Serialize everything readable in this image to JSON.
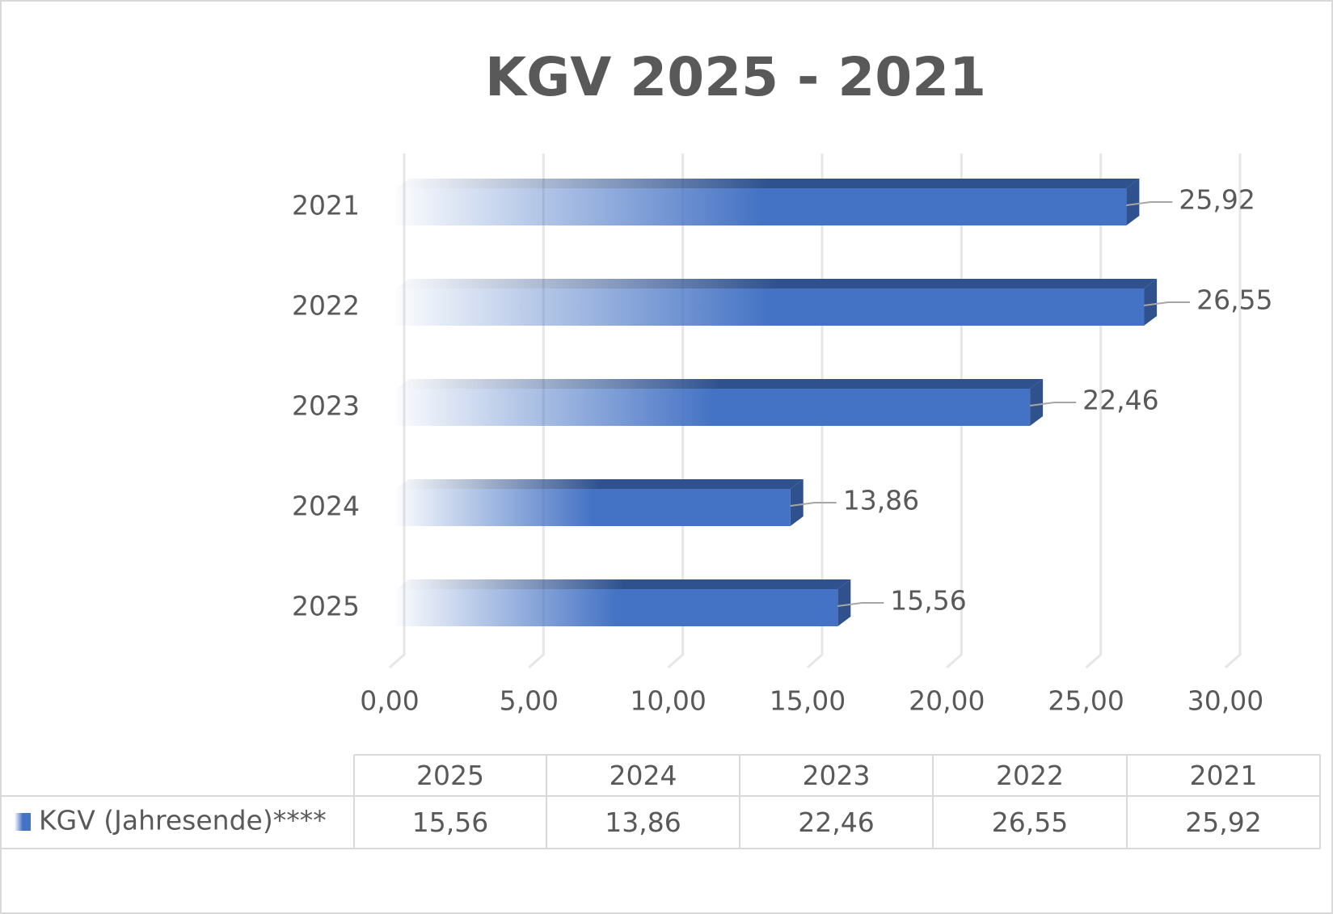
{
  "chart_data": {
    "type": "bar",
    "orientation": "horizontal",
    "title": "KGV 2025 - 2021",
    "categories": [
      "2025",
      "2024",
      "2023",
      "2022",
      "2021"
    ],
    "series": [
      {
        "name": "KGV (Jahresende)****",
        "color": "#4472c4",
        "values": [
          15.56,
          13.86,
          22.46,
          26.55,
          25.92
        ],
        "value_labels": [
          "15,56",
          "13,86",
          "22,46",
          "26,55",
          "25,92"
        ]
      }
    ],
    "xlim": [
      0,
      30
    ],
    "xticks": [
      {
        "value": 0,
        "label": "0,00"
      },
      {
        "value": 5,
        "label": "5,00"
      },
      {
        "value": 10,
        "label": "10,00"
      },
      {
        "value": 15,
        "label": "15,00"
      },
      {
        "value": 20,
        "label": "20,00"
      },
      {
        "value": 25,
        "label": "25,00"
      },
      {
        "value": 30,
        "label": "30,00"
      }
    ],
    "grid": true,
    "data_table": true
  }
}
